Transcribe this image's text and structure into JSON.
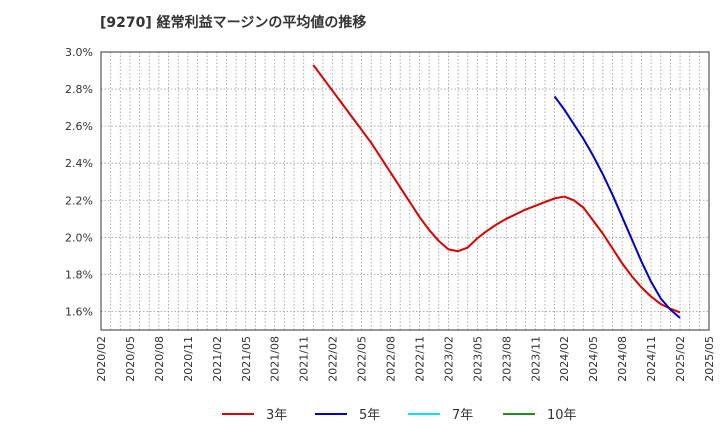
{
  "chart_data": {
    "type": "line",
    "title": "[9270]  経常利益マージンの平均値の推移",
    "xlabel": "",
    "ylabel": "",
    "ylim": [
      1.5,
      3.0
    ],
    "yticks": [
      1.6,
      1.8,
      2.0,
      2.2,
      2.4,
      2.6,
      2.8,
      3.0
    ],
    "ytick_labels": [
      "1.6%",
      "1.8%",
      "2.0%",
      "2.2%",
      "2.4%",
      "2.6%",
      "2.8%",
      "3.0%"
    ],
    "xlim": [
      "2020/02",
      "2025/05"
    ],
    "xtick_labels": [
      "2020/02",
      "2020/05",
      "2020/08",
      "2020/11",
      "2021/02",
      "2021/05",
      "2021/08",
      "2021/11",
      "2022/02",
      "2022/05",
      "2022/08",
      "2022/11",
      "2023/02",
      "2023/05",
      "2023/08",
      "2023/11",
      "2024/02",
      "2024/05",
      "2024/08",
      "2024/11",
      "2025/02",
      "2025/05"
    ],
    "grid": true,
    "legend_position": "bottom",
    "series": [
      {
        "name": "3年",
        "color": "#dd0000",
        "points": [
          [
            "2021/12",
            2.93
          ],
          [
            "2022/01",
            2.86
          ],
          [
            "2022/02",
            2.79
          ],
          [
            "2022/03",
            2.72
          ],
          [
            "2022/04",
            2.65
          ],
          [
            "2022/05",
            2.58
          ],
          [
            "2022/06",
            2.51
          ],
          [
            "2022/07",
            2.43
          ],
          [
            "2022/08",
            2.35
          ],
          [
            "2022/09",
            2.27
          ],
          [
            "2022/10",
            2.19
          ],
          [
            "2022/11",
            2.11
          ],
          [
            "2022/12",
            2.04
          ],
          [
            "2023/01",
            1.98
          ],
          [
            "2023/02",
            1.935
          ],
          [
            "2023/03",
            1.925
          ],
          [
            "2023/04",
            1.945
          ],
          [
            "2023/05",
            1.995
          ],
          [
            "2023/06",
            2.035
          ],
          [
            "2023/07",
            2.07
          ],
          [
            "2023/08",
            2.1
          ],
          [
            "2023/09",
            2.125
          ],
          [
            "2023/10",
            2.15
          ],
          [
            "2023/11",
            2.17
          ],
          [
            "2023/12",
            2.19
          ],
          [
            "2024/01",
            2.21
          ],
          [
            "2024/02",
            2.22
          ],
          [
            "2024/03",
            2.2
          ],
          [
            "2024/04",
            2.16
          ],
          [
            "2024/05",
            2.09
          ],
          [
            "2024/06",
            2.02
          ],
          [
            "2024/07",
            1.94
          ],
          [
            "2024/08",
            1.86
          ],
          [
            "2024/09",
            1.79
          ],
          [
            "2024/10",
            1.73
          ],
          [
            "2024/11",
            1.68
          ],
          [
            "2024/12",
            1.64
          ],
          [
            "2025/01",
            1.615
          ],
          [
            "2025/02",
            1.595
          ]
        ]
      },
      {
        "name": "5年",
        "color": "#0000cc",
        "points": [
          [
            "2024/01",
            2.76
          ],
          [
            "2024/02",
            2.69
          ],
          [
            "2024/03",
            2.61
          ],
          [
            "2024/04",
            2.53
          ],
          [
            "2024/05",
            2.44
          ],
          [
            "2024/06",
            2.34
          ],
          [
            "2024/07",
            2.23
          ],
          [
            "2024/08",
            2.11
          ],
          [
            "2024/09",
            1.99
          ],
          [
            "2024/10",
            1.87
          ],
          [
            "2024/11",
            1.76
          ],
          [
            "2024/12",
            1.67
          ],
          [
            "2025/01",
            1.61
          ],
          [
            "2025/02",
            1.565
          ]
        ]
      },
      {
        "name": "7年",
        "color": "#00e5ee",
        "points": []
      },
      {
        "name": "10年",
        "color": "#228b22",
        "points": []
      }
    ]
  }
}
